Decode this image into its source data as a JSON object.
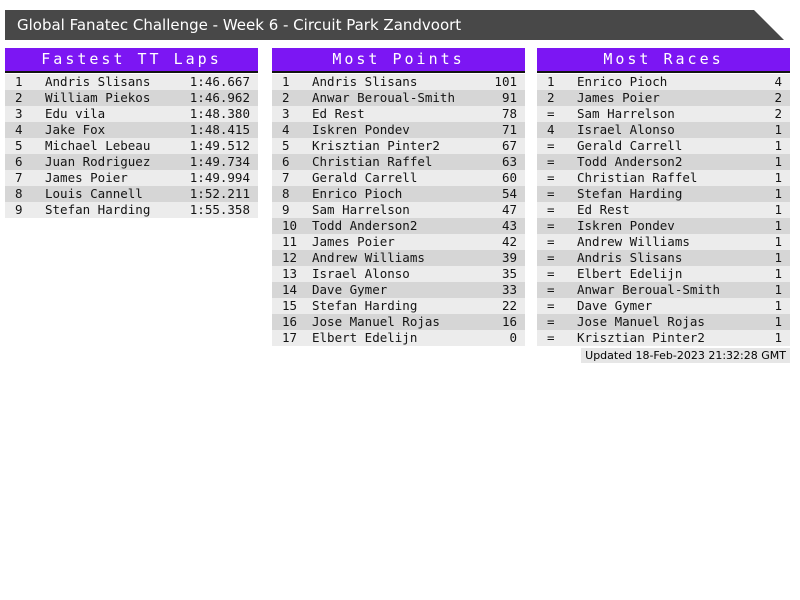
{
  "title_bar": {
    "text": "Global Fanatec Challenge - Week 6 - Circuit Park Zandvoort"
  },
  "tables": [
    {
      "title": "Fastest TT Laps",
      "rows": [
        {
          "rank": "1",
          "name": "Andris Slisans",
          "value": "1:46.667"
        },
        {
          "rank": "2",
          "name": "William Piekos",
          "value": "1:46.962"
        },
        {
          "rank": "3",
          "name": "Edu vila",
          "value": "1:48.380"
        },
        {
          "rank": "4",
          "name": "Jake Fox",
          "value": "1:48.415"
        },
        {
          "rank": "5",
          "name": "Michael Lebeau",
          "value": "1:49.512"
        },
        {
          "rank": "6",
          "name": "Juan Rodriguez",
          "value": "1:49.734"
        },
        {
          "rank": "7",
          "name": "James Poier",
          "value": "1:49.994"
        },
        {
          "rank": "8",
          "name": "Louis Cannell",
          "value": "1:52.211"
        },
        {
          "rank": "9",
          "name": "Stefan Harding",
          "value": "1:55.358"
        }
      ]
    },
    {
      "title": "Most Points",
      "rows": [
        {
          "rank": "1",
          "name": "Andris Slisans",
          "value": "101"
        },
        {
          "rank": "2",
          "name": "Anwar Beroual-Smith",
          "value": "91"
        },
        {
          "rank": "3",
          "name": "Ed Rest",
          "value": "78"
        },
        {
          "rank": "4",
          "name": "Iskren Pondev",
          "value": "71"
        },
        {
          "rank": "5",
          "name": "Krisztian Pinter2",
          "value": "67"
        },
        {
          "rank": "6",
          "name": "Christian Raffel",
          "value": "63"
        },
        {
          "rank": "7",
          "name": "Gerald Carrell",
          "value": "60"
        },
        {
          "rank": "8",
          "name": "Enrico Pioch",
          "value": "54"
        },
        {
          "rank": "9",
          "name": "Sam Harrelson",
          "value": "47"
        },
        {
          "rank": "10",
          "name": "Todd Anderson2",
          "value": "43"
        },
        {
          "rank": "11",
          "name": "James Poier",
          "value": "42"
        },
        {
          "rank": "12",
          "name": "Andrew Williams",
          "value": "39"
        },
        {
          "rank": "13",
          "name": "Israel Alonso",
          "value": "35"
        },
        {
          "rank": "14",
          "name": "Dave Gymer",
          "value": "33"
        },
        {
          "rank": "15",
          "name": "Stefan Harding",
          "value": "22"
        },
        {
          "rank": "16",
          "name": "Jose Manuel Rojas",
          "value": "16"
        },
        {
          "rank": "17",
          "name": "Elbert Edelijn",
          "value": "0"
        }
      ]
    },
    {
      "title": "Most Races",
      "rows": [
        {
          "rank": "1",
          "name": "Enrico Pioch",
          "value": "4"
        },
        {
          "rank": "2",
          "name": "James Poier",
          "value": "2"
        },
        {
          "rank": "=",
          "name": "Sam Harrelson",
          "value": "2"
        },
        {
          "rank": "4",
          "name": "Israel Alonso",
          "value": "1"
        },
        {
          "rank": "=",
          "name": "Gerald Carrell",
          "value": "1"
        },
        {
          "rank": "=",
          "name": "Todd Anderson2",
          "value": "1"
        },
        {
          "rank": "=",
          "name": "Christian Raffel",
          "value": "1"
        },
        {
          "rank": "=",
          "name": "Stefan Harding",
          "value": "1"
        },
        {
          "rank": "=",
          "name": "Ed Rest",
          "value": "1"
        },
        {
          "rank": "=",
          "name": "Iskren Pondev",
          "value": "1"
        },
        {
          "rank": "=",
          "name": "Andrew Williams",
          "value": "1"
        },
        {
          "rank": "=",
          "name": "Andris Slisans",
          "value": "1"
        },
        {
          "rank": "=",
          "name": "Elbert Edelijn",
          "value": "1"
        },
        {
          "rank": "=",
          "name": "Anwar Beroual-Smith",
          "value": "1"
        },
        {
          "rank": "=",
          "name": "Dave Gymer",
          "value": "1"
        },
        {
          "rank": "=",
          "name": "Jose Manuel Rojas",
          "value": "1"
        },
        {
          "rank": "=",
          "name": "Krisztian Pinter2",
          "value": "1"
        }
      ]
    }
  ],
  "footer": {
    "updated": "Updated 18-Feb-2023 21:32:28 GMT"
  },
  "colors": {
    "accent": "#7C16F3",
    "titlebar_bg": "#484848",
    "row_light": "#ECECEC",
    "row_dark": "#D6D6D6"
  }
}
